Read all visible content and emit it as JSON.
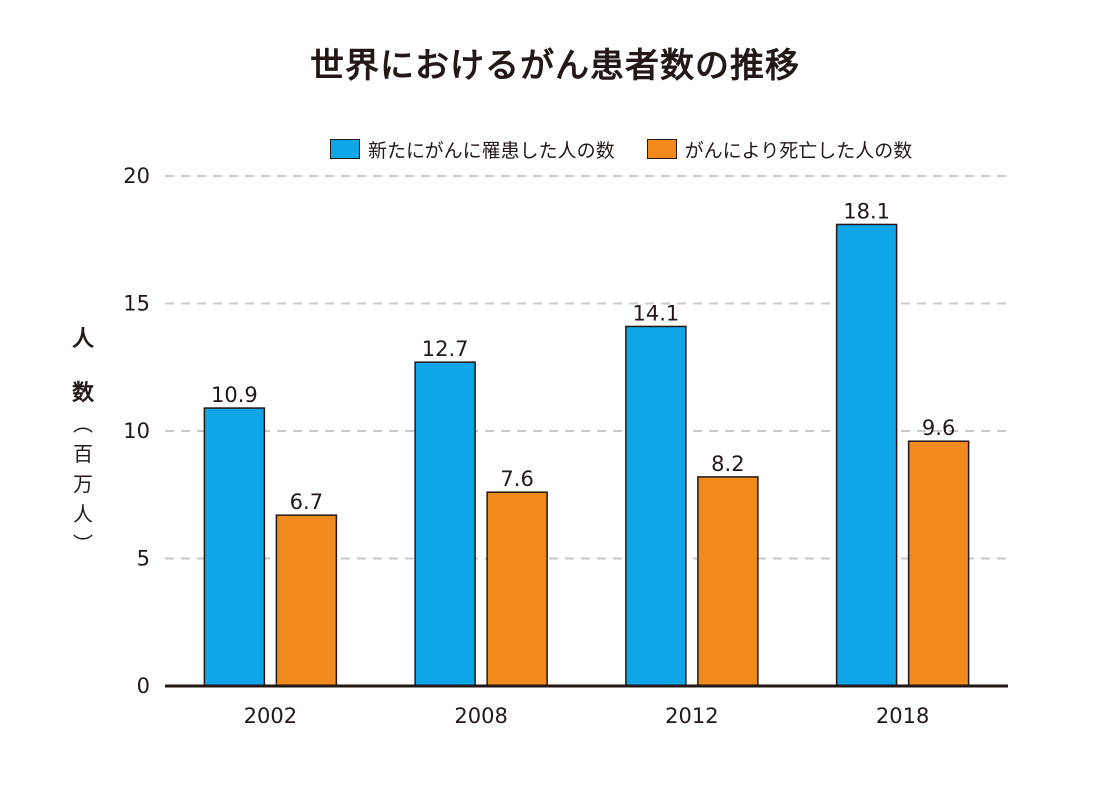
{
  "chart_data": {
    "type": "bar",
    "title": "世界におけるがん患者数の推移",
    "ylabel": "人数（百万人）",
    "xlabel": "",
    "categories": [
      "2002",
      "2008",
      "2012",
      "2018"
    ],
    "ylim": [
      0,
      20
    ],
    "yticks": [
      0,
      5,
      10,
      15,
      20
    ],
    "grid": true,
    "legend_position": "top-right",
    "series": [
      {
        "name": "新たにがんに罹患した人の数",
        "values": [
          10.9,
          12.7,
          14.1,
          18.1
        ],
        "color": "#0ea5e9"
      },
      {
        "name": "がんにより死亡した人の数",
        "values": [
          6.7,
          7.6,
          8.2,
          9.6
        ],
        "color": "#f08a1c"
      }
    ],
    "data_labels": true
  }
}
